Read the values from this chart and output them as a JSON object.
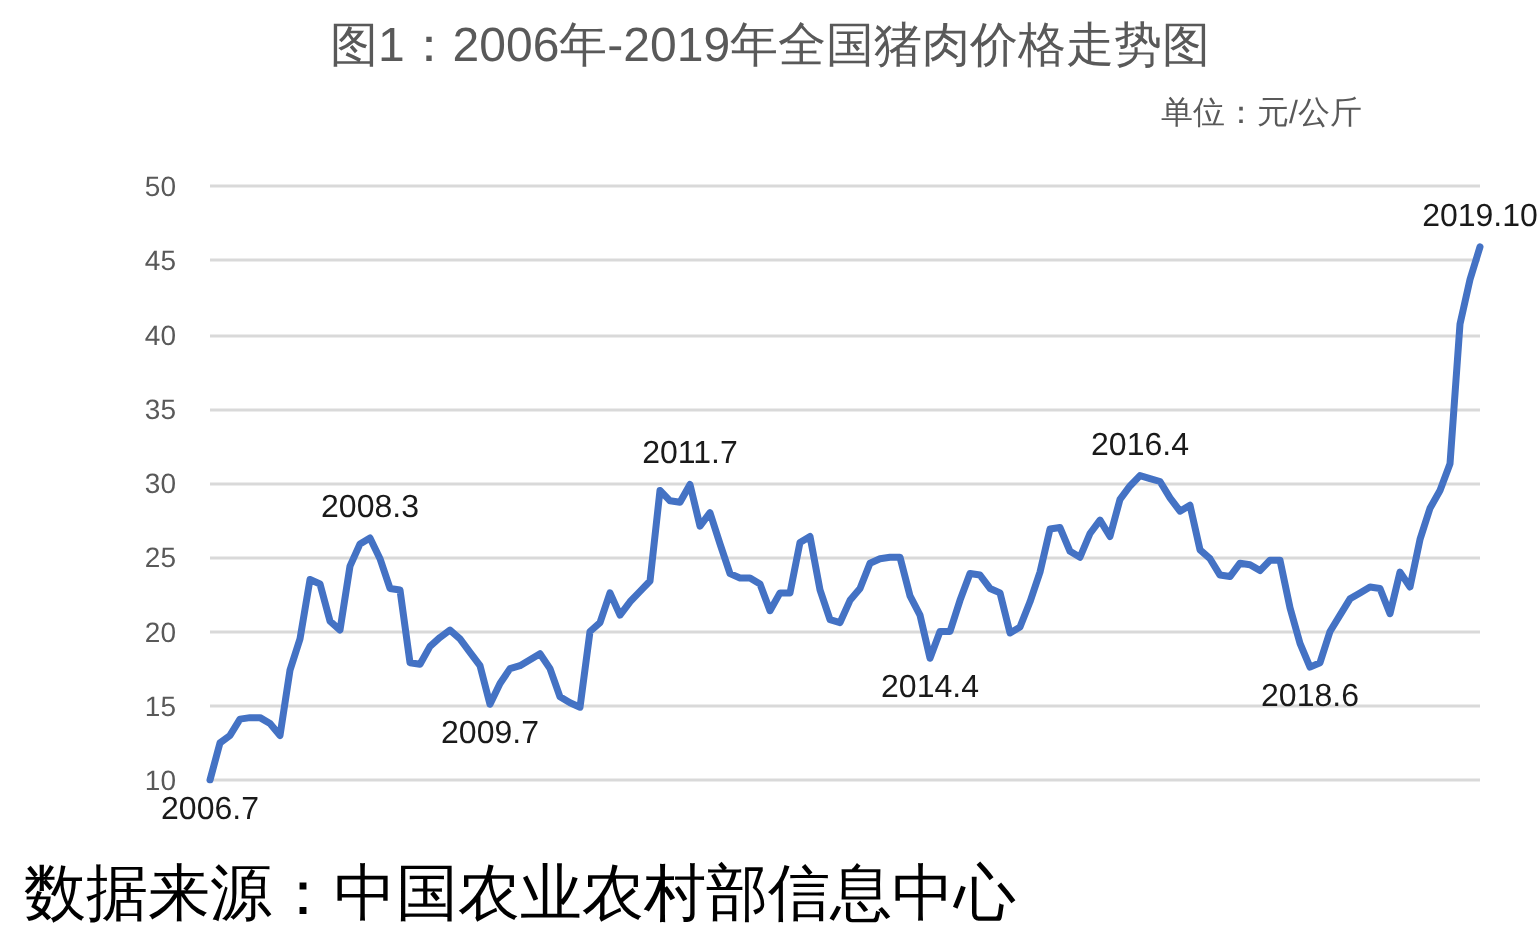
{
  "chart_data": {
    "type": "line",
    "title": "图1：2006年-2019年全国猪肉价格走势图",
    "subtitle": "单位：元/公斤",
    "annotations": [
      {
        "text": "2006.7",
        "y": 10.0
      },
      {
        "text": "2008.3",
        "y": 26.3
      },
      {
        "text": "2009.7",
        "y": 15.1
      },
      {
        "text": "2011.7",
        "y": 29.9
      },
      {
        "text": "2014.4",
        "y": 18.2
      },
      {
        "text": "2016.4",
        "y": 30.5
      },
      {
        "text": "2018.6",
        "y": 17.6
      },
      {
        "text": "2019.10",
        "y": 45.9
      },
      "数据来源：中国农业农村部信息中心"
    ],
    "categories": [
      null,
      null,
      null,
      null,
      null,
      null,
      null,
      null,
      null,
      null,
      null,
      null,
      null,
      null,
      null,
      null,
      null,
      null,
      null,
      null,
      null,
      null,
      null,
      null,
      null,
      null,
      null,
      null,
      null,
      null,
      null,
      null,
      null,
      null,
      null,
      null,
      null,
      null,
      null,
      null,
      null,
      null,
      null,
      null,
      null,
      null,
      null,
      null,
      null,
      null,
      null,
      null,
      null,
      null,
      null,
      null,
      null,
      null,
      null,
      null,
      null,
      null,
      null,
      null,
      null,
      null,
      null,
      null,
      null,
      null,
      null,
      null,
      null,
      null,
      null,
      null,
      null,
      null,
      null,
      null,
      null,
      null,
      null,
      null,
      null,
      null,
      null,
      null,
      null,
      null,
      null,
      null,
      null,
      null,
      null,
      null,
      null,
      null,
      null,
      null,
      null,
      null,
      null,
      null,
      null,
      null,
      null,
      null,
      null,
      null,
      null,
      null,
      null,
      null,
      null,
      null,
      null,
      null,
      null,
      null,
      null,
      null,
      null,
      null,
      null,
      null,
      null,
      null
    ],
    "values": [
      10.0,
      12.5,
      13.0,
      14.1,
      14.2,
      14.2,
      13.8,
      13.0,
      17.4,
      19.5,
      23.5,
      23.2,
      20.7,
      20.1,
      24.4,
      25.9,
      26.3,
      24.9,
      22.9,
      22.8,
      17.9,
      17.8,
      19.0,
      19.6,
      20.1,
      19.5,
      18.6,
      17.7,
      15.1,
      16.5,
      17.5,
      17.7,
      18.1,
      18.5,
      17.5,
      15.6,
      15.2,
      14.9,
      20.0,
      20.6,
      22.6,
      21.1,
      22.0,
      22.7,
      23.4,
      29.5,
      28.8,
      28.7,
      29.9,
      27.1,
      28.0,
      25.9,
      23.9,
      23.6,
      23.6,
      23.2,
      21.4,
      22.6,
      22.6,
      26.0,
      26.4,
      22.8,
      20.8,
      20.6,
      22.1,
      22.9,
      24.6,
      24.9,
      25.0,
      25.0,
      22.4,
      21.1,
      18.2,
      20.0,
      20.0,
      22.1,
      23.9,
      23.8,
      22.9,
      22.6,
      19.9,
      20.3,
      22.0,
      24.0,
      26.9,
      27.0,
      25.4,
      25.0,
      26.6,
      27.5,
      26.4,
      28.9,
      29.8,
      30.5,
      30.3,
      30.1,
      29.0,
      28.1,
      28.5,
      25.5,
      24.9,
      23.8,
      23.7,
      24.6,
      24.5,
      24.1,
      24.8,
      24.8,
      21.6,
      19.2,
      17.6,
      17.9,
      20.0,
      21.1,
      22.2,
      22.6,
      23.0,
      22.9,
      21.2,
      24.0,
      23.0,
      26.2,
      28.3,
      29.5,
      31.3,
      40.7,
      43.7,
      45.9
    ],
    "color": "#4472c4",
    "ylim": [
      10,
      50
    ],
    "yticks": [
      10,
      15,
      20,
      25,
      30,
      35,
      40,
      45,
      50
    ],
    "grid": "y"
  }
}
